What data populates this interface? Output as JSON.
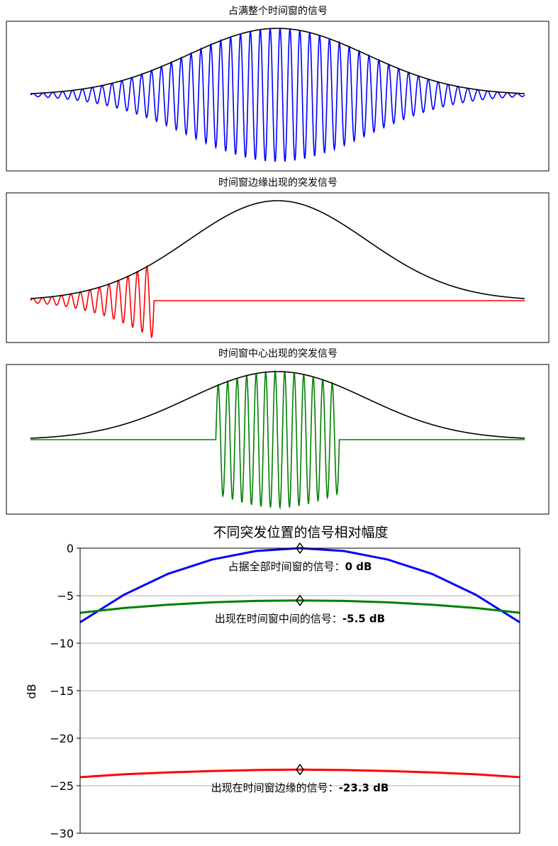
{
  "chart_data": [
    {
      "type": "line",
      "title": "占满整个时间窗的信号",
      "series": [
        {
          "role": "window",
          "color": "#000000",
          "shape": "gaussian",
          "sigma": 0.18
        },
        {
          "role": "signal",
          "color": "#0000ff",
          "extent": [
            0.0,
            1.0
          ],
          "cycles": 50
        }
      ]
    },
    {
      "type": "line",
      "title": "时间窗边缘出现的突发信号",
      "series": [
        {
          "role": "window",
          "color": "#000000",
          "shape": "gaussian",
          "sigma": 0.18
        },
        {
          "role": "signal",
          "color": "#ff0000",
          "extent": [
            0.0,
            0.25
          ],
          "cycles": 13
        }
      ]
    },
    {
      "type": "line",
      "title": "时间窗中心出现的突发信号",
      "series": [
        {
          "role": "window",
          "color": "#000000",
          "shape": "gaussian",
          "sigma": 0.18
        },
        {
          "role": "signal",
          "color": "#008000",
          "extent": [
            0.375,
            0.625
          ],
          "cycles": 13
        }
      ]
    },
    {
      "type": "line",
      "title": "不同突发位置的信号相对幅度",
      "ylabel": "dB",
      "ylim": [
        -30,
        0
      ],
      "yticks": [
        "0",
        "−5",
        "−10",
        "−15",
        "−20",
        "−25",
        "−30"
      ],
      "grid": "horizontal",
      "x": [
        -0.5,
        -0.4,
        -0.3,
        -0.2,
        -0.1,
        0.0,
        0.1,
        0.2,
        0.3,
        0.4,
        0.5
      ],
      "series": [
        {
          "color": "#0000ff",
          "values": [
            -7.8,
            -4.9,
            -2.7,
            -1.2,
            -0.3,
            0.0,
            -0.3,
            -1.2,
            -2.7,
            -4.9,
            -7.8
          ]
        },
        {
          "color": "#008000",
          "values": [
            -6.8,
            -6.3,
            -5.95,
            -5.7,
            -5.55,
            -5.5,
            -5.55,
            -5.7,
            -5.95,
            -6.3,
            -6.8
          ]
        },
        {
          "color": "#ff0000",
          "values": [
            -24.1,
            -23.8,
            -23.6,
            -23.45,
            -23.35,
            -23.3,
            -23.35,
            -23.45,
            -23.6,
            -23.8,
            -24.1
          ]
        }
      ],
      "markers": [
        {
          "x": 0.0,
          "y": 0.0
        },
        {
          "x": 0.0,
          "y": -5.5
        },
        {
          "x": 0.0,
          "y": -23.3
        }
      ],
      "annotations": [
        {
          "y": 0.0,
          "text": "占据全部时间窗的信号：",
          "value": "0 dB"
        },
        {
          "y": -5.5,
          "text": "出现在时间窗中间的信号：",
          "value": "-5.5 dB"
        },
        {
          "y": -23.3,
          "text": "出现在时间窗边缘的信号：",
          "value": "-23.3 dB"
        }
      ]
    }
  ]
}
